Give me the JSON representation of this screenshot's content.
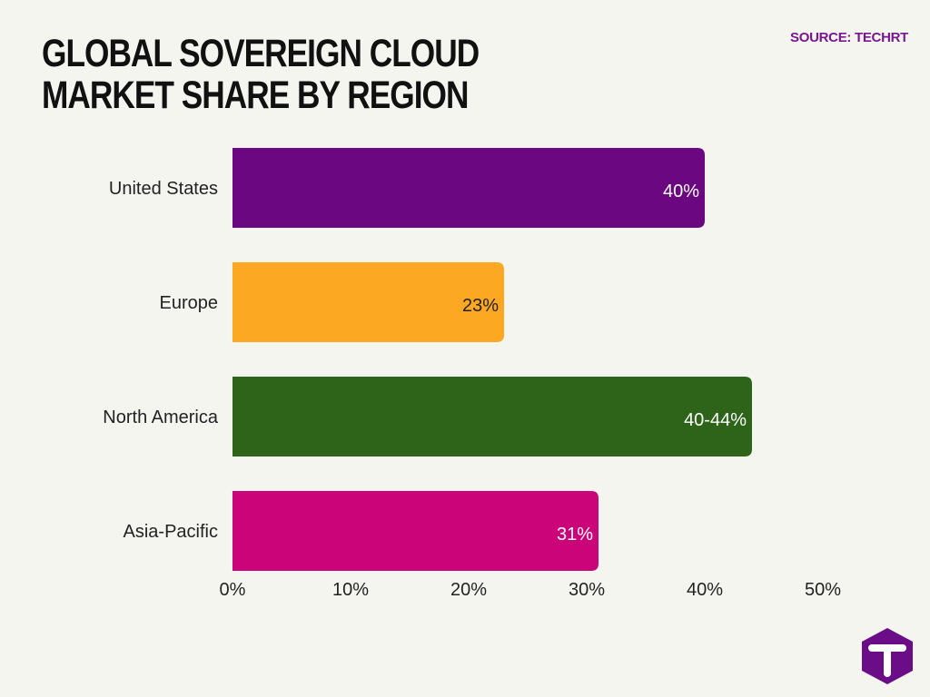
{
  "header": {
    "title": "GLOBAL SOVEREIGN CLOUD MARKET SHARE BY REGION",
    "source": "SOURCE: TECHRT"
  },
  "colors": {
    "source_text": "#7a1590",
    "tick_text": "#222222",
    "label_text": "#222222",
    "logo_bg": "#6b0d87"
  },
  "logo": {
    "icon": "t-hexagon-icon"
  },
  "chart_data": {
    "type": "bar",
    "orientation": "horizontal",
    "categories": [
      "United States",
      "Europe",
      "North America",
      "Asia-Pacific"
    ],
    "values": [
      40,
      23,
      44,
      31
    ],
    "value_labels": [
      "40%",
      "23%",
      "40-44%",
      "31%"
    ],
    "colors": [
      "#6b0780",
      "#fca823",
      "#2e6419",
      "#cc047a"
    ],
    "label_colors": [
      "#ffffff",
      "#222222",
      "#ffffff",
      "#ffffff"
    ],
    "xlim": [
      0,
      50
    ],
    "xticks": [
      0,
      10,
      20,
      30,
      40,
      50
    ],
    "xtick_labels": [
      "0%",
      "10%",
      "20%",
      "30%",
      "40%",
      "50%"
    ],
    "grid": false,
    "legend": "none"
  }
}
